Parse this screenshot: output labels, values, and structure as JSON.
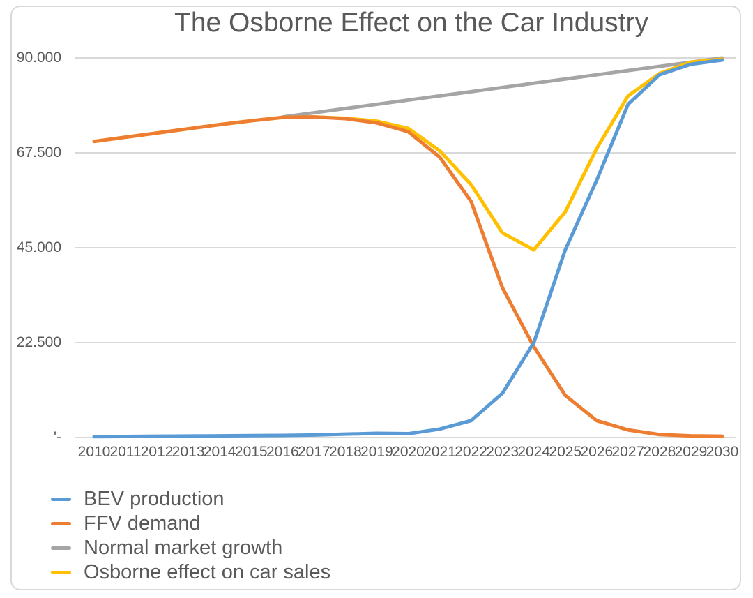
{
  "title": "The Osborne Effect on the Car Industry",
  "colors": {
    "title_text": "#595959",
    "axis_text": "#595959",
    "gridline": "#D9D9D9",
    "frame_border": "#D9D9D9",
    "background": "#FFFFFF"
  },
  "chart_data": {
    "type": "line",
    "title": "The Osborne Effect on the Car Industry",
    "xlabel": "",
    "ylabel": "",
    "x": [
      2010,
      2011,
      2012,
      2013,
      2014,
      2015,
      2016,
      2017,
      2018,
      2019,
      2020,
      2021,
      2022,
      2023,
      2024,
      2025,
      2026,
      2027,
      2028,
      2029,
      2030
    ],
    "x_tick_labels": [
      "2010",
      "2011",
      "2012",
      "2013",
      "2014",
      "2015",
      "2016",
      "2017",
      "2018",
      "2019",
      "2020",
      "2021",
      "2022",
      "2023",
      "2024",
      "2025",
      "2026",
      "2027",
      "2028",
      "2029",
      "2030"
    ],
    "ylim": [
      0,
      90000
    ],
    "y_ticks": [
      {
        "value": 90000,
        "label": "90.000"
      },
      {
        "value": 67500,
        "label": "67.500"
      },
      {
        "value": 45000,
        "label": "45.000"
      },
      {
        "value": 22500,
        "label": "22.500"
      },
      {
        "value": 0,
        "label": "'-"
      }
    ],
    "grid": true,
    "legend_position": "bottom-left",
    "series": [
      {
        "name": "BEV production",
        "color": "#5B9BD5",
        "values": [
          200,
          250,
          300,
          350,
          400,
          450,
          500,
          600,
          800,
          1000,
          900,
          2000,
          4000,
          10500,
          22500,
          44500,
          61000,
          79000,
          86000,
          88500,
          89500
        ]
      },
      {
        "name": "FFV demand",
        "color": "#ED7D31",
        "values": [
          70200,
          71200,
          72200,
          73200,
          74200,
          75100,
          75900,
          76000,
          75600,
          74600,
          72500,
          66500,
          56000,
          35500,
          21500,
          10000,
          4000,
          1800,
          700,
          400,
          300
        ]
      },
      {
        "name": "Normal market growth",
        "color": "#A5A5A5",
        "values": [
          null,
          null,
          null,
          null,
          null,
          null,
          76000,
          77000,
          78000,
          79000,
          80000,
          81000,
          82000,
          83000,
          84000,
          85000,
          86000,
          87000,
          88000,
          89000,
          90000
        ]
      },
      {
        "name": "Osborne effect on car sales",
        "color": "#FFC000",
        "values": [
          70200,
          71200,
          72200,
          73200,
          74200,
          75100,
          75900,
          76000,
          75700,
          75000,
          73300,
          68000,
          60000,
          48500,
          44500,
          53500,
          68500,
          81000,
          86300,
          89000,
          89700
        ]
      }
    ]
  }
}
